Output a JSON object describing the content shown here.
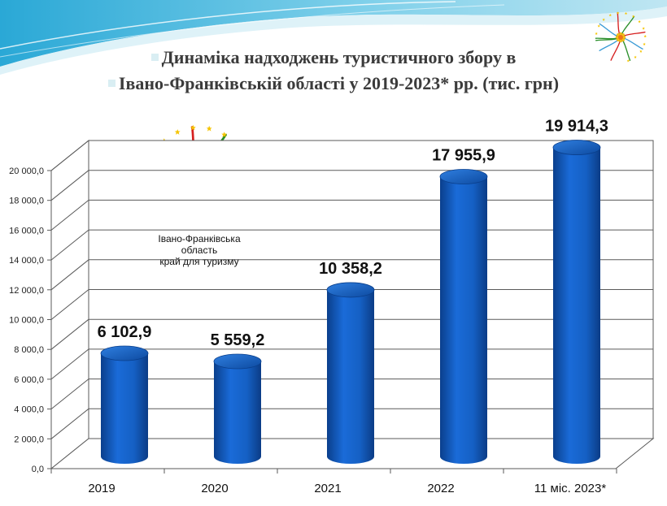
{
  "chart_data": {
    "type": "bar",
    "title_line1": "Динаміка надходжень туристичного збору в",
    "title_line2": "Івано-Франківській області у 2019-2023* рр. (тис. грн)",
    "categories": [
      "2019",
      "2020",
      "2021",
      "2022",
      "11 міс. 2023*"
    ],
    "values": [
      6102.9,
      5559.2,
      10358.2,
      17955.9,
      19914.3
    ],
    "value_labels": [
      "6 102,9",
      "5 559,2",
      "10 358,2",
      "17 955,9",
      "19 914,3"
    ],
    "y_ticks": [
      "0,0",
      "2 000,0",
      "4 000,0",
      "6 000,0",
      "8 000,0",
      "10 000,0",
      "12 000,0",
      "14 000,0",
      "16 000,0",
      "18 000,0",
      "20 000,0"
    ],
    "ylim": [
      0,
      20000
    ],
    "grid": true,
    "bar_color": "#1560c4"
  },
  "logo": {
    "line1": "Івано-Франківська область",
    "line2": "край для туризму"
  }
}
